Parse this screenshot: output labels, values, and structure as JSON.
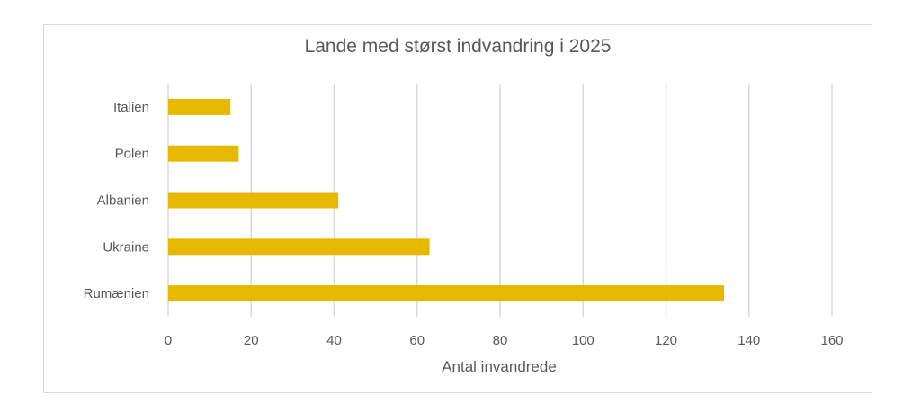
{
  "chart_data": {
    "type": "bar",
    "orientation": "horizontal",
    "title": "Lande med størst indvandring i 2025",
    "xlabel": "Antal invandrede",
    "ylabel": "",
    "categories": [
      "Italien",
      "Polen",
      "Albanien",
      "Ukraine",
      "Rumænien"
    ],
    "values": [
      15,
      17,
      41,
      63,
      134
    ],
    "xlim": [
      0,
      160
    ],
    "xticks": [
      0,
      20,
      40,
      60,
      80,
      100,
      120,
      140,
      160
    ],
    "grid": "vertical",
    "bar_color": "#E6B800",
    "grid_color": "#d9d9d9"
  }
}
